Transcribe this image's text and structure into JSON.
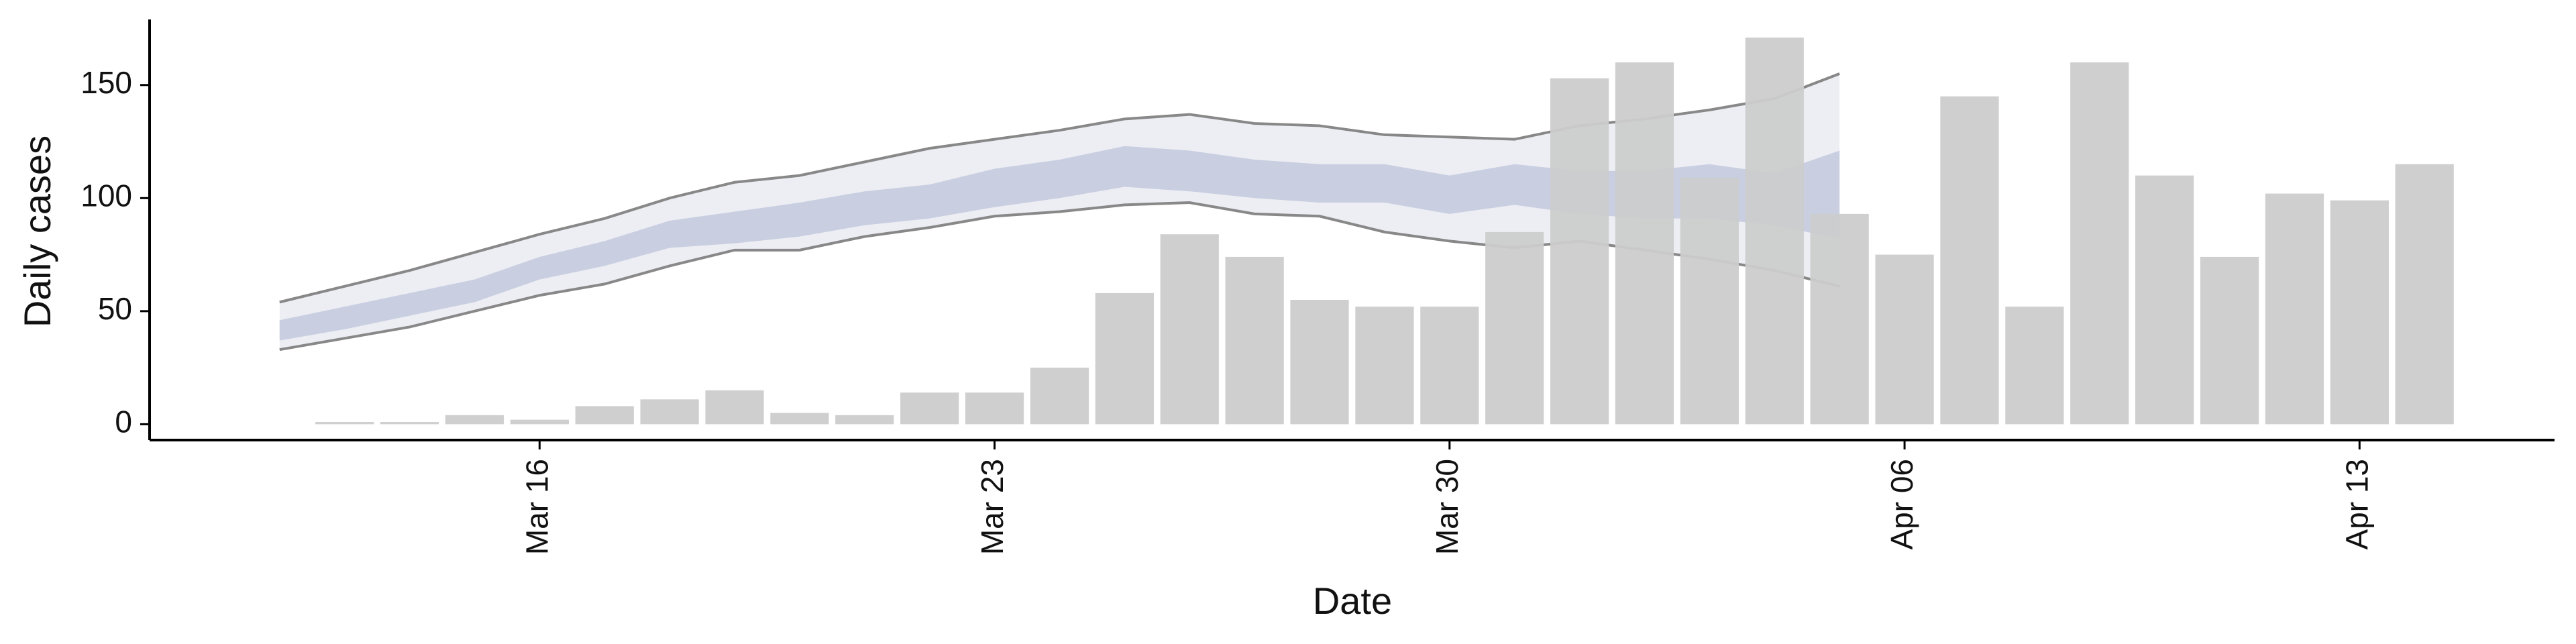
{
  "chart_data": {
    "type": "bar",
    "x_label": "Date",
    "y_label": "Daily cases",
    "x": [
      "Mar 13",
      "Mar 14",
      "Mar 15",
      "Mar 16",
      "Mar 17",
      "Mar 18",
      "Mar 19",
      "Mar 20",
      "Mar 21",
      "Mar 22",
      "Mar 23",
      "Mar 24",
      "Mar 25",
      "Mar 26",
      "Mar 27",
      "Mar 28",
      "Mar 29",
      "Mar 30",
      "Mar 31",
      "Apr 01",
      "Apr 02",
      "Apr 03",
      "Apr 04",
      "Apr 05",
      "Apr 06",
      "Apr 07",
      "Apr 08",
      "Apr 09",
      "Apr 10",
      "Apr 11",
      "Apr 12",
      "Apr 13",
      "Apr 14"
    ],
    "values": [
      1,
      1,
      4,
      2,
      8,
      11,
      15,
      5,
      4,
      14,
      14,
      25,
      58,
      84,
      74,
      55,
      52,
      52,
      85,
      153,
      160,
      109,
      171,
      93,
      75,
      145,
      52,
      160,
      110,
      74,
      102,
      99,
      115
    ],
    "color": "#cccccc",
    "bands": {
      "x": [
        "Mar 12",
        "Mar 13",
        "Mar 14",
        "Mar 15",
        "Mar 16",
        "Mar 17",
        "Mar 18",
        "Mar 19",
        "Mar 20",
        "Mar 21",
        "Mar 22",
        "Mar 23",
        "Mar 24",
        "Mar 25",
        "Mar 26",
        "Mar 27",
        "Mar 28",
        "Mar 29",
        "Mar 30",
        "Mar 31",
        "Apr 01",
        "Apr 02",
        "Apr 03",
        "Apr 04",
        "Apr 05"
      ],
      "series": [
        {
          "color": "#eceef3",
          "line_color": "#888888",
          "upper": [
            54,
            61,
            68,
            76,
            84,
            91,
            100,
            107,
            110,
            116,
            122,
            126,
            130,
            135,
            137,
            133,
            132,
            128,
            127,
            126,
            132,
            135,
            139,
            144,
            155
          ],
          "lower": [
            33,
            38,
            43,
            50,
            57,
            62,
            70,
            77,
            77,
            83,
            87,
            92,
            94,
            97,
            98,
            93,
            92,
            85,
            81,
            78,
            81,
            77,
            73,
            68,
            61
          ]
        },
        {
          "color": "#c9cee1",
          "upper": [
            46,
            52,
            58,
            64,
            74,
            81,
            90,
            94,
            98,
            103,
            106,
            113,
            117,
            123,
            121,
            117,
            115,
            115,
            110,
            115,
            112,
            112,
            115,
            111,
            121
          ],
          "lower": [
            37,
            42,
            48,
            54,
            64,
            70,
            78,
            80,
            83,
            88,
            91,
            96,
            100,
            105,
            103,
            100,
            98,
            98,
            93,
            97,
            93,
            91,
            91,
            88,
            82
          ]
        }
      ]
    },
    "xlim": [
      "Mar 10",
      "Apr 16"
    ],
    "xticks": [
      "Mar 16",
      "Mar 23",
      "Mar 30",
      "Apr 06",
      "Apr 13"
    ],
    "ylim": [
      -7,
      179
    ],
    "yticks": [
      0,
      50,
      100,
      150
    ]
  }
}
